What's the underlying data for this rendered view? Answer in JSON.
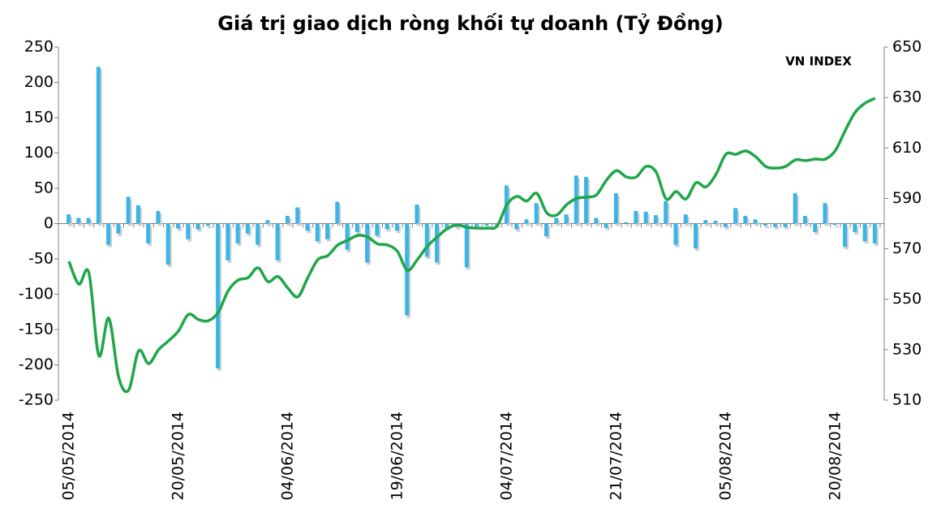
{
  "chart_data": {
    "type": "bar_line",
    "title": "Giá trị giao dịch ròng khối tự doanh (Tỷ Đồng)",
    "annotation": "VN INDEX",
    "categories": [
      "05/05/2014",
      null,
      null,
      null,
      null,
      null,
      null,
      null,
      null,
      null,
      null,
      "20/05/2014",
      null,
      null,
      null,
      null,
      null,
      null,
      null,
      null,
      null,
      null,
      "04/06/2014",
      null,
      null,
      null,
      null,
      null,
      null,
      null,
      null,
      null,
      null,
      "19/06/2014",
      null,
      null,
      null,
      null,
      null,
      null,
      null,
      null,
      null,
      null,
      "04/07/2014",
      null,
      null,
      null,
      null,
      null,
      null,
      null,
      null,
      null,
      null,
      "21/07/2014",
      null,
      null,
      null,
      null,
      null,
      null,
      null,
      null,
      null,
      null,
      "05/08/2014",
      null,
      null,
      null,
      null,
      null,
      null,
      null,
      null,
      null,
      null,
      "20/08/2014",
      null,
      null,
      null,
      null
    ],
    "series": [
      {
        "type": "bar",
        "color": "#3bb5e6",
        "values": [
          13,
          8,
          8,
          222,
          -30,
          -14,
          38,
          26,
          -28,
          18,
          -58,
          -7,
          -22,
          -8,
          -3,
          -205,
          -52,
          -28,
          -14,
          -30,
          5,
          -52,
          11,
          23,
          -10,
          -25,
          -22,
          31,
          -37,
          -12,
          -55,
          -17,
          -8,
          -10,
          -130,
          27,
          -47,
          -55,
          -6,
          -5,
          -62,
          -4,
          -3,
          -2,
          54,
          -8,
          6,
          29,
          -18,
          8,
          13,
          68,
          66,
          8,
          -6,
          43,
          2,
          18,
          17,
          12,
          32,
          -30,
          13,
          -35,
          5,
          4,
          -5,
          22,
          11,
          6,
          -3,
          -5,
          -5,
          43,
          11,
          -12,
          29,
          -2,
          -33,
          -12,
          -25,
          -28
        ]
      },
      {
        "type": "line",
        "name": "VN INDEX",
        "axis": "y2",
        "color": "#1fa64a",
        "values": [
          565,
          556,
          560.5,
          527.7,
          542.5,
          519,
          514,
          529.6,
          524.5,
          530,
          533.5,
          537.4,
          544,
          542,
          541.5,
          544.8,
          553.4,
          557.6,
          558.6,
          562.5,
          557,
          559,
          554.4,
          551,
          558.6,
          565.7,
          567.3,
          571.5,
          573.4,
          575.3,
          574.7,
          572,
          571.5,
          569,
          561.5,
          565.7,
          571,
          574.7,
          578,
          579.5,
          578.5,
          578.2,
          578.2,
          579,
          587.5,
          590.8,
          589,
          592,
          584.3,
          583.4,
          587.5,
          590,
          590.5,
          591.4,
          597.2,
          601,
          598.5,
          598.5,
          602.7,
          600.4,
          589.8,
          592.7,
          589.8,
          596.2,
          594.6,
          599.5,
          607.5,
          607.5,
          608.8,
          606.5,
          602.7,
          602,
          602.7,
          605.3,
          605,
          605.6,
          605.6,
          609,
          617,
          624.2,
          627.8,
          629.7
        ]
      }
    ],
    "ylim": [
      -250,
      250
    ],
    "yticks": [
      -250,
      -200,
      -150,
      -100,
      -50,
      0,
      50,
      100,
      150,
      200,
      250
    ],
    "y2lim": [
      510,
      650
    ],
    "y2ticks": [
      510,
      530,
      550,
      570,
      590,
      610,
      630,
      650
    ]
  }
}
